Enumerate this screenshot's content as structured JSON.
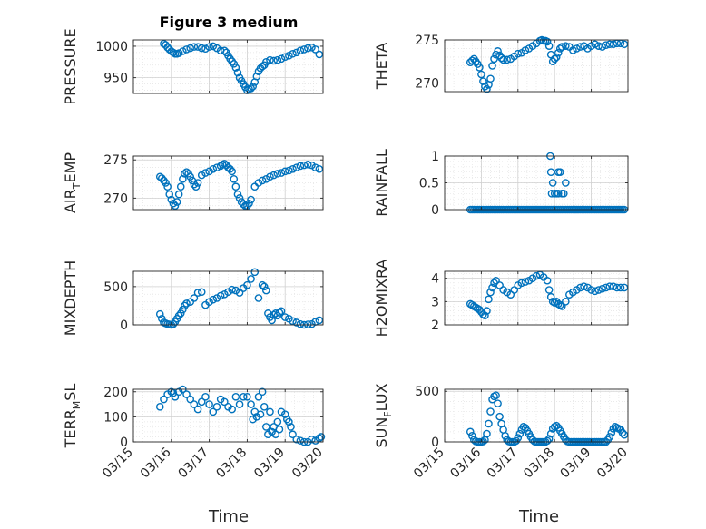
{
  "figure": {
    "title": "Figure 3 medium",
    "xlabel": "Time"
  },
  "colors": {
    "marker": "#0072bd",
    "axis": "#262626",
    "grid": "#bfbfbf",
    "bg": "#ffffff"
  },
  "chart_data": [
    {
      "type": "scatter",
      "ylabel": "PRESSURE",
      "xlim": [
        0,
        5
      ],
      "ylim": [
        925,
        1010
      ],
      "yticks": [
        950,
        1000
      ],
      "xtick_labels": [],
      "x": [
        0.8,
        0.85,
        0.9,
        0.95,
        1.0,
        1.05,
        1.1,
        1.15,
        1.2,
        1.3,
        1.4,
        1.5,
        1.6,
        1.7,
        1.8,
        1.9,
        2.0,
        2.1,
        2.2,
        2.3,
        2.4,
        2.45,
        2.5,
        2.55,
        2.6,
        2.65,
        2.7,
        2.75,
        2.8,
        2.85,
        2.9,
        2.95,
        3.0,
        3.05,
        3.1,
        3.15,
        3.2,
        3.25,
        3.3,
        3.35,
        3.4,
        3.45,
        3.5,
        3.6,
        3.7,
        3.8,
        3.9,
        4.0,
        4.1,
        4.2,
        4.3,
        4.4,
        4.5,
        4.6,
        4.7,
        4.8,
        4.9
      ],
      "y": [
        1004,
        1002,
        998,
        995,
        992,
        990,
        988,
        988,
        989,
        992,
        995,
        997,
        999,
        999,
        997,
        996,
        999,
        1000,
        997,
        993,
        993,
        990,
        985,
        980,
        976,
        972,
        966,
        958,
        950,
        945,
        940,
        935,
        930,
        932,
        933,
        936,
        943,
        952,
        960,
        965,
        968,
        970,
        975,
        978,
        977,
        978,
        980,
        983,
        985,
        988,
        990,
        993,
        995,
        997,
        998,
        995,
        987
      ]
    },
    {
      "type": "scatter",
      "ylabel": "THETA",
      "xlim": [
        0,
        5
      ],
      "ylim": [
        269,
        275
      ],
      "yticks": [
        270,
        275
      ],
      "xtick_labels": [],
      "x": [
        0.7,
        0.75,
        0.8,
        0.85,
        0.9,
        0.95,
        1.0,
        1.05,
        1.1,
        1.15,
        1.2,
        1.25,
        1.3,
        1.35,
        1.4,
        1.45,
        1.5,
        1.55,
        1.6,
        1.7,
        1.8,
        1.9,
        2.0,
        2.1,
        2.2,
        2.3,
        2.4,
        2.5,
        2.6,
        2.65,
        2.7,
        2.75,
        2.8,
        2.85,
        2.9,
        2.95,
        3.0,
        3.05,
        3.1,
        3.15,
        3.2,
        3.3,
        3.4,
        3.5,
        3.6,
        3.7,
        3.8,
        3.9,
        4.0,
        4.1,
        4.2,
        4.3,
        4.4,
        4.5,
        4.6,
        4.7,
        4.8,
        4.9
      ],
      "y": [
        272.4,
        272.6,
        272.8,
        272.5,
        272.2,
        271.8,
        271.0,
        270.2,
        269.6,
        269.3,
        269.8,
        270.5,
        272.0,
        272.8,
        273.3,
        273.7,
        273.2,
        272.9,
        272.7,
        272.7,
        272.8,
        273.1,
        273.4,
        273.5,
        273.8,
        274.0,
        274.3,
        274.6,
        274.9,
        275.0,
        274.9,
        274.9,
        274.8,
        274.3,
        273.3,
        272.5,
        272.8,
        273.0,
        273.5,
        274.0,
        274.2,
        274.3,
        274.2,
        273.8,
        274.0,
        274.2,
        274.3,
        274.0,
        274.3,
        274.5,
        274.3,
        274.2,
        274.4,
        274.5,
        274.5,
        274.6,
        274.6,
        274.5
      ]
    },
    {
      "type": "scatter",
      "ylabel": "AIR_TEMP",
      "xlim": [
        0,
        5
      ],
      "ylim": [
        268.5,
        275.5
      ],
      "yticks": [
        270,
        275
      ],
      "xtick_labels": [],
      "x": [
        0.7,
        0.75,
        0.8,
        0.85,
        0.9,
        0.95,
        1.0,
        1.05,
        1.1,
        1.15,
        1.2,
        1.25,
        1.3,
        1.35,
        1.4,
        1.45,
        1.5,
        1.55,
        1.6,
        1.65,
        1.7,
        1.8,
        1.9,
        2.0,
        2.1,
        2.2,
        2.3,
        2.35,
        2.4,
        2.45,
        2.5,
        2.55,
        2.6,
        2.65,
        2.7,
        2.75,
        2.8,
        2.85,
        2.9,
        2.95,
        3.0,
        3.05,
        3.1,
        3.2,
        3.3,
        3.4,
        3.5,
        3.6,
        3.7,
        3.8,
        3.9,
        4.0,
        4.1,
        4.2,
        4.3,
        4.4,
        4.5,
        4.6,
        4.7,
        4.8,
        4.9
      ],
      "y": [
        272.8,
        272.6,
        272.3,
        272.0,
        271.5,
        270.5,
        269.8,
        269.3,
        269.0,
        269.5,
        270.5,
        271.5,
        272.5,
        273.2,
        273.4,
        273.2,
        272.8,
        272.3,
        271.8,
        271.5,
        272.0,
        273.0,
        273.3,
        273.5,
        273.8,
        274.0,
        274.2,
        274.4,
        274.5,
        274.3,
        274.0,
        273.8,
        273.5,
        272.5,
        271.5,
        270.5,
        270.0,
        269.5,
        269.2,
        269.0,
        269.0,
        269.3,
        269.8,
        271.5,
        272.0,
        272.3,
        272.5,
        272.8,
        273.0,
        273.2,
        273.3,
        273.5,
        273.6,
        273.8,
        274.0,
        274.2,
        274.3,
        274.4,
        274.3,
        274.0,
        273.8
      ]
    },
    {
      "type": "scatter",
      "ylabel": "RAINFALL",
      "xlim": [
        0,
        5
      ],
      "ylim": [
        0,
        1
      ],
      "yticks": [
        0,
        0.5,
        1
      ],
      "xtick_labels": [],
      "x": [
        0.7,
        0.75,
        0.8,
        0.85,
        0.9,
        0.95,
        1.0,
        1.05,
        1.1,
        1.15,
        1.2,
        1.25,
        1.3,
        1.35,
        1.4,
        1.45,
        1.5,
        1.55,
        1.6,
        1.65,
        1.7,
        1.75,
        1.8,
        1.85,
        1.9,
        1.95,
        2.0,
        2.05,
        2.1,
        2.15,
        2.2,
        2.25,
        2.3,
        2.35,
        2.4,
        2.45,
        2.5,
        2.55,
        2.6,
        2.65,
        2.7,
        2.75,
        2.8,
        2.85,
        2.9,
        2.95,
        3.0,
        3.05,
        3.1,
        3.15,
        3.2,
        3.25,
        3.3,
        3.35,
        3.4,
        3.45,
        3.5,
        3.55,
        3.6,
        3.65,
        3.7,
        3.75,
        3.8,
        3.85,
        3.9,
        3.95,
        4.0,
        4.05,
        4.1,
        4.15,
        4.2,
        4.25,
        4.3,
        4.35,
        4.4,
        4.45,
        4.5,
        4.55,
        4.6,
        4.65,
        4.7,
        4.75,
        4.8,
        4.85,
        4.9,
        2.88,
        2.9,
        2.92,
        2.95,
        3.0,
        3.05,
        3.1,
        3.15,
        3.2,
        3.25,
        3.3,
        3.1
      ],
      "y": [
        0,
        0,
        0,
        0,
        0,
        0,
        0,
        0,
        0,
        0,
        0,
        0,
        0,
        0,
        0,
        0,
        0,
        0,
        0,
        0,
        0,
        0,
        0,
        0,
        0,
        0,
        0,
        0,
        0,
        0,
        0,
        0,
        0,
        0,
        0,
        0,
        0,
        0,
        0,
        0,
        0,
        0,
        0,
        0,
        0,
        0,
        0,
        0,
        0,
        0,
        0,
        0,
        0,
        0,
        0,
        0,
        0,
        0,
        0,
        0,
        0,
        0,
        0,
        0,
        0,
        0,
        0,
        0,
        0,
        0,
        0,
        0,
        0,
        0,
        0,
        0,
        0,
        0,
        0,
        0,
        0,
        0,
        0,
        0,
        0,
        1,
        0.7,
        0.3,
        0.5,
        0.3,
        0.3,
        0.7,
        0.7,
        0.3,
        0.3,
        0.5,
        0.3
      ]
    },
    {
      "type": "scatter",
      "ylabel": "MIXDEPTH",
      "xlim": [
        0,
        5
      ],
      "ylim": [
        0,
        700
      ],
      "yticks": [
        0,
        500
      ],
      "xtick_labels": [],
      "x": [
        0.7,
        0.75,
        0.8,
        0.85,
        0.9,
        0.95,
        1.0,
        1.05,
        1.1,
        1.15,
        1.2,
        1.25,
        1.3,
        1.35,
        1.4,
        1.5,
        1.6,
        1.7,
        1.8,
        1.9,
        2.0,
        2.1,
        2.2,
        2.3,
        2.4,
        2.5,
        2.6,
        2.7,
        2.8,
        2.9,
        3.0,
        3.1,
        3.2,
        3.3,
        3.4,
        3.45,
        3.5,
        3.55,
        3.6,
        3.65,
        3.7,
        3.75,
        3.8,
        3.85,
        3.9,
        4.0,
        4.1,
        4.2,
        4.3,
        4.4,
        4.5,
        4.6,
        4.7,
        4.8,
        4.9
      ],
      "y": [
        140,
        80,
        30,
        20,
        10,
        5,
        0,
        10,
        40,
        80,
        120,
        150,
        200,
        250,
        280,
        300,
        350,
        420,
        430,
        260,
        300,
        330,
        350,
        380,
        400,
        430,
        460,
        450,
        420,
        480,
        520,
        600,
        690,
        350,
        520,
        500,
        450,
        150,
        100,
        60,
        130,
        150,
        120,
        160,
        180,
        100,
        80,
        50,
        30,
        10,
        0,
        5,
        10,
        40,
        60
      ]
    },
    {
      "type": "scatter",
      "ylabel": "H2OMIXRA",
      "xlim": [
        0,
        5
      ],
      "ylim": [
        2,
        4.3
      ],
      "yticks": [
        2,
        3,
        4
      ],
      "xtick_labels": [],
      "x": [
        0.7,
        0.75,
        0.8,
        0.85,
        0.9,
        0.95,
        1.0,
        1.05,
        1.1,
        1.15,
        1.2,
        1.25,
        1.3,
        1.35,
        1.4,
        1.5,
        1.6,
        1.7,
        1.8,
        1.9,
        2.0,
        2.1,
        2.2,
        2.3,
        2.4,
        2.5,
        2.6,
        2.7,
        2.8,
        2.85,
        2.9,
        2.95,
        3.0,
        3.05,
        3.1,
        3.15,
        3.2,
        3.3,
        3.4,
        3.5,
        3.6,
        3.7,
        3.8,
        3.9,
        4.0,
        4.1,
        4.2,
        4.3,
        4.4,
        4.5,
        4.6,
        4.7,
        4.8,
        4.9
      ],
      "y": [
        2.9,
        2.85,
        2.8,
        2.75,
        2.7,
        2.65,
        2.55,
        2.45,
        2.4,
        2.6,
        3.1,
        3.4,
        3.6,
        3.8,
        3.9,
        3.7,
        3.5,
        3.4,
        3.3,
        3.5,
        3.7,
        3.8,
        3.85,
        3.9,
        4.0,
        4.1,
        4.15,
        4.05,
        3.9,
        3.5,
        3.2,
        3.0,
        2.95,
        3.0,
        2.9,
        2.85,
        2.8,
        3.0,
        3.3,
        3.4,
        3.5,
        3.6,
        3.65,
        3.6,
        3.5,
        3.45,
        3.5,
        3.55,
        3.6,
        3.65,
        3.65,
        3.6,
        3.6,
        3.6
      ]
    },
    {
      "type": "scatter",
      "ylabel": "TERR_MSL",
      "xlim": [
        0,
        5
      ],
      "ylim": [
        0,
        210
      ],
      "yticks": [
        0,
        100,
        200
      ],
      "xtick_labels": [
        "03/15",
        "03/16",
        "03/17",
        "03/18",
        "03/19",
        "03/20"
      ],
      "x": [
        0.7,
        0.8,
        0.9,
        1.0,
        1.05,
        1.1,
        1.2,
        1.3,
        1.4,
        1.5,
        1.6,
        1.7,
        1.8,
        1.9,
        2.0,
        2.1,
        2.2,
        2.3,
        2.4,
        2.5,
        2.6,
        2.7,
        2.8,
        2.9,
        3.0,
        3.1,
        3.15,
        3.2,
        3.25,
        3.3,
        3.35,
        3.4,
        3.45,
        3.5,
        3.55,
        3.6,
        3.65,
        3.7,
        3.75,
        3.8,
        3.85,
        3.9,
        4.0,
        4.05,
        4.1,
        4.15,
        4.2,
        4.3,
        4.4,
        4.5,
        4.6,
        4.7,
        4.8,
        4.9,
        4.95
      ],
      "y": [
        140,
        170,
        190,
        200,
        195,
        180,
        200,
        210,
        190,
        170,
        150,
        130,
        160,
        180,
        150,
        120,
        140,
        170,
        160,
        140,
        130,
        180,
        150,
        180,
        180,
        150,
        90,
        120,
        100,
        180,
        110,
        200,
        140,
        60,
        30,
        120,
        40,
        60,
        30,
        80,
        50,
        120,
        110,
        90,
        80,
        60,
        30,
        10,
        5,
        0,
        0,
        10,
        5,
        15,
        20
      ]
    },
    {
      "type": "scatter",
      "ylabel": "SUN_FLUX",
      "xlim": [
        0,
        5
      ],
      "ylim": [
        0,
        520
      ],
      "yticks": [
        0,
        500
      ],
      "xtick_labels": [
        "03/15",
        "03/16",
        "03/17",
        "03/18",
        "03/19",
        "03/20"
      ],
      "x": [
        0.7,
        0.75,
        0.8,
        0.85,
        0.9,
        0.95,
        1.0,
        1.05,
        1.1,
        1.15,
        1.2,
        1.25,
        1.3,
        1.35,
        1.4,
        1.45,
        1.5,
        1.55,
        1.6,
        1.65,
        1.7,
        1.75,
        1.8,
        1.85,
        1.9,
        1.95,
        2.0,
        2.05,
        2.1,
        2.15,
        2.2,
        2.25,
        2.3,
        2.35,
        2.4,
        2.45,
        2.5,
        2.55,
        2.6,
        2.65,
        2.7,
        2.75,
        2.8,
        2.85,
        2.9,
        2.95,
        3.0,
        3.05,
        3.1,
        3.15,
        3.2,
        3.25,
        3.3,
        3.35,
        3.4,
        3.45,
        3.5,
        3.55,
        3.6,
        3.65,
        3.7,
        3.75,
        3.8,
        3.85,
        3.9,
        3.95,
        4.0,
        4.05,
        4.1,
        4.15,
        4.2,
        4.25,
        4.3,
        4.35,
        4.4,
        4.45,
        4.5,
        4.55,
        4.6,
        4.65,
        4.7,
        4.75,
        4.8,
        4.85,
        4.9
      ],
      "y": [
        100,
        60,
        20,
        5,
        0,
        0,
        0,
        5,
        20,
        80,
        180,
        300,
        420,
        450,
        460,
        380,
        250,
        180,
        120,
        60,
        20,
        5,
        0,
        0,
        0,
        10,
        40,
        80,
        120,
        150,
        140,
        110,
        80,
        50,
        20,
        5,
        0,
        0,
        0,
        0,
        0,
        0,
        10,
        30,
        80,
        130,
        150,
        160,
        140,
        110,
        80,
        50,
        20,
        5,
        0,
        0,
        0,
        0,
        0,
        0,
        0,
        0,
        0,
        0,
        0,
        0,
        0,
        0,
        0,
        0,
        0,
        0,
        0,
        0,
        0,
        20,
        50,
        90,
        130,
        150,
        140,
        130,
        120,
        90,
        70
      ]
    }
  ]
}
